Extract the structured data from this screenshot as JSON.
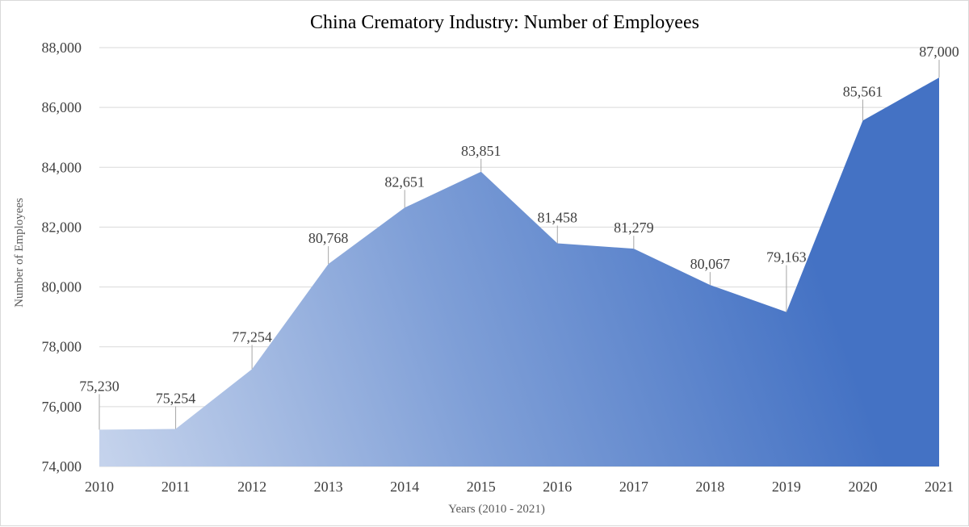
{
  "chart_data": {
    "type": "area",
    "title": "China Crematory Industry: Number of Employees",
    "xlabel": "Years (2010 - 2021)",
    "ylabel": "Number of Employees",
    "categories": [
      "2010",
      "2011",
      "2012",
      "2013",
      "2014",
      "2015",
      "2016",
      "2017",
      "2018",
      "2019",
      "2020",
      "2021"
    ],
    "values": [
      75230,
      75254,
      77254,
      80768,
      82651,
      83851,
      81458,
      81279,
      80067,
      79163,
      85561,
      87000
    ],
    "value_labels": [
      "75,230",
      "75,254",
      "77,254",
      "80,768",
      "82,651",
      "83,851",
      "81,458",
      "81,279",
      "80,067",
      "79,163",
      "85,561",
      "87,000"
    ],
    "ylim": [
      74000,
      88000
    ],
    "yticks": [
      74000,
      76000,
      78000,
      80000,
      82000,
      84000,
      86000,
      88000
    ],
    "ytick_labels": [
      "74,000",
      "76,000",
      "78,000",
      "80,000",
      "82,000",
      "84,000",
      "86,000",
      "88,000"
    ],
    "grid": true,
    "legend": "none",
    "colors": {
      "fill_light": "#c5d3ec",
      "fill_dark": "#4472c4",
      "grid": "#d9d9d9",
      "text": "#404040"
    }
  }
}
